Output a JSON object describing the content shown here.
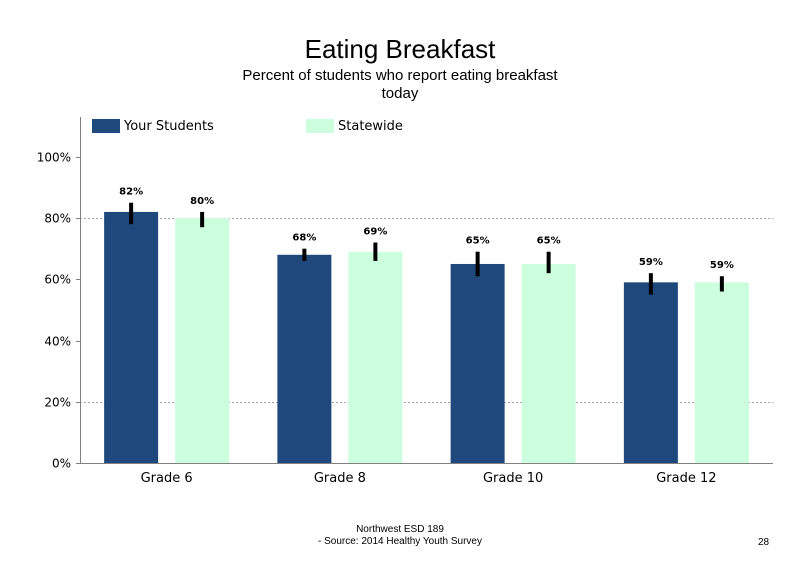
{
  "colors": {
    "your_students": "#1F497D",
    "statewide": "#CCFFDD",
    "error_bar": "#000000",
    "grid": "#a6a6a6"
  },
  "chart_data": {
    "type": "bar",
    "title": "Eating Breakfast",
    "subtitle": [
      "Percent of students who report eating breakfast",
      "today"
    ],
    "categories": [
      "Grade 6",
      "Grade 8",
      "Grade 10",
      "Grade 12"
    ],
    "series": [
      {
        "name": "Your Students",
        "values": [
          82,
          68,
          65,
          59
        ],
        "labels": [
          "82%",
          "68%",
          "65%",
          "59%"
        ],
        "error": [
          [
            78,
            85
          ],
          [
            66,
            70
          ],
          [
            61,
            69
          ],
          [
            55,
            62
          ]
        ]
      },
      {
        "name": "Statewide",
        "values": [
          80,
          69,
          65,
          59
        ],
        "labels": [
          "80%",
          "69%",
          "65%",
          "59%"
        ],
        "error": [
          [
            77,
            82
          ],
          [
            66,
            72
          ],
          [
            62,
            69
          ],
          [
            56,
            61
          ]
        ]
      }
    ],
    "ylim": [
      0,
      113
    ],
    "yticks": [
      0,
      20,
      40,
      60,
      80,
      100
    ],
    "ytick_labels": [
      "0%",
      "20%",
      "40%",
      "60%",
      "80%",
      "100%"
    ],
    "gridlines_at": [
      20,
      80
    ],
    "legend": "top-left"
  },
  "footer": {
    "line1": "Northwest ESD  189",
    "line2": "- Source: 2014 Healthy  Youth Survey"
  },
  "page_number": "28"
}
